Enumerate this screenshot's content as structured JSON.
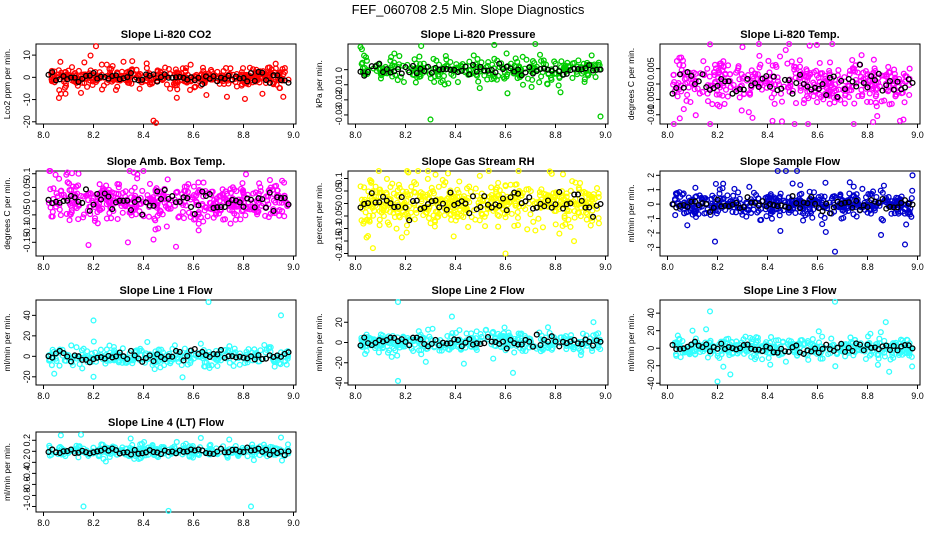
{
  "figure": {
    "title": "FEF_060708  2.5 Min. Slope Diagnostics"
  },
  "chart_data": [
    {
      "id": "co2",
      "type": "scatter",
      "title": "Slope Li-820 CO2",
      "ylabel": "Lco2 ppm per min.",
      "xlim": [
        7.97,
        9.01
      ],
      "xticks": [
        8.0,
        8.2,
        8.4,
        8.6,
        8.8,
        9.0
      ],
      "ylim": [
        -21,
        15
      ],
      "yticks": [
        -20,
        -10,
        0,
        10
      ],
      "color": "#ff0000",
      "spread": 2.6,
      "n": 420,
      "xstart": 8.02,
      "xend": 8.98,
      "outliers": [
        [
          8.21,
          14
        ],
        [
          8.44,
          -19.5
        ],
        [
          8.45,
          -20.5
        ],
        [
          8.15,
          -7
        ],
        [
          8.32,
          7
        ]
      ]
    },
    {
      "id": "press",
      "type": "scatter",
      "title": "Slope Li-820 Pressure",
      "ylabel": "kPa per min.",
      "xlim": [
        7.97,
        9.01
      ],
      "xticks": [
        8.0,
        8.2,
        8.4,
        8.6,
        8.8,
        9.0
      ],
      "ylim": [
        -0.036,
        0.017
      ],
      "yticks": [
        -0.03,
        -0.02,
        -0.01,
        0.0
      ],
      "color": "#00cc00",
      "spread": 0.004,
      "n": 300,
      "xstart": 8.02,
      "xend": 8.98,
      "outliers": [
        [
          8.02,
          0.015
        ],
        [
          8.3,
          -0.033
        ],
        [
          8.98,
          -0.031
        ],
        [
          8.82,
          -0.015
        ],
        [
          8.67,
          -0.01
        ]
      ]
    },
    {
      "id": "temp",
      "type": "scatter",
      "title": "Slope Li-820 Temp.",
      "ylabel": "degrees C per min.",
      "xlim": [
        7.97,
        9.01
      ],
      "xticks": [
        8.0,
        8.2,
        8.4,
        8.6,
        8.8,
        9.0
      ],
      "ylim": [
        -0.013,
        0.013
      ],
      "yticks": [
        -0.01,
        -0.005,
        0.0,
        0.005
      ],
      "color": "#ff00ff",
      "spread": 0.0045,
      "n": 420,
      "xstart": 8.02,
      "xend": 8.98,
      "outliers": [
        [
          8.3,
          0.012
        ],
        [
          8.34,
          -0.011
        ],
        [
          8.42,
          -0.012
        ],
        [
          8.93,
          -0.012
        ]
      ]
    },
    {
      "id": "box",
      "type": "scatter",
      "title": "Slope Amb. Box Temp.",
      "ylabel": "degrees C per min.",
      "xlim": [
        7.97,
        9.01
      ],
      "xticks": [
        8.0,
        8.2,
        8.4,
        8.6,
        8.8,
        9.0
      ],
      "ylim": [
        -0.2,
        0.11
      ],
      "yticks": [
        -0.15,
        -0.1,
        -0.05,
        0.0,
        0.05,
        0.1
      ],
      "color": "#ff00ff",
      "spread": 0.045,
      "n": 460,
      "xstart": 8.02,
      "xend": 8.98,
      "outliers": [
        [
          8.18,
          -0.16
        ],
        [
          8.44,
          -0.14
        ],
        [
          8.14,
          0.1
        ]
      ]
    },
    {
      "id": "rh",
      "type": "scatter",
      "title": "Slope Gas Stream RH",
      "ylabel": "percent per min.",
      "xlim": [
        7.97,
        9.01
      ],
      "xticks": [
        8.0,
        8.2,
        8.4,
        8.6,
        8.8,
        9.0
      ],
      "ylim": [
        -0.21,
        0.13
      ],
      "yticks": [
        -0.2,
        -0.15,
        -0.1,
        -0.05,
        0.0,
        0.05,
        0.1
      ],
      "color": "#ffff00",
      "spread": 0.05,
      "n": 500,
      "xstart": 8.02,
      "xend": 8.98,
      "outliers": [
        [
          8.6,
          -0.2
        ],
        [
          8.37,
          0.12
        ],
        [
          8.05,
          -0.13
        ]
      ]
    },
    {
      "id": "sample",
      "type": "scatter",
      "title": "Slope Sample Flow",
      "ylabel": "ml/min per min.",
      "xlim": [
        7.97,
        9.01
      ],
      "xticks": [
        8.0,
        8.2,
        8.4,
        8.6,
        8.8,
        9.0
      ],
      "ylim": [
        -3.6,
        2.3
      ],
      "yticks": [
        -3,
        -2,
        -1,
        0,
        1,
        2
      ],
      "color": "#0000cc",
      "spread": 0.55,
      "n": 460,
      "xstart": 8.02,
      "xend": 8.98,
      "outliers": [
        [
          8.67,
          -3.3
        ],
        [
          8.19,
          -2.6
        ],
        [
          8.95,
          -2.8
        ],
        [
          8.98,
          2.0
        ]
      ]
    },
    {
      "id": "line1",
      "type": "scatter",
      "title": "Slope Line 1 Flow",
      "ylabel": "ml/min per min.",
      "xlim": [
        7.97,
        9.01
      ],
      "xticks": [
        8.0,
        8.2,
        8.4,
        8.6,
        8.8,
        9.0
      ],
      "ylim": [
        -28,
        55
      ],
      "yticks": [
        -20,
        0,
        20,
        40
      ],
      "color": "#33ffff",
      "spread": 6,
      "n": 300,
      "xstart": 8.02,
      "xend": 8.98,
      "outliers": [
        [
          8.66,
          53
        ],
        [
          8.2,
          35
        ],
        [
          8.95,
          40
        ],
        [
          8.2,
          -20
        ]
      ]
    },
    {
      "id": "line2",
      "type": "scatter",
      "title": "Slope Line 2 Flow",
      "ylabel": "ml/min per min.",
      "xlim": [
        7.97,
        9.01
      ],
      "xticks": [
        8.0,
        8.2,
        8.4,
        8.6,
        8.8,
        9.0
      ],
      "ylim": [
        -42,
        42
      ],
      "yticks": [
        -40,
        -20,
        0,
        20
      ],
      "color": "#33ffff",
      "spread": 6,
      "n": 360,
      "xstart": 8.02,
      "xend": 8.98,
      "outliers": [
        [
          8.17,
          40
        ],
        [
          8.17,
          -38
        ],
        [
          8.63,
          -30
        ],
        [
          8.77,
          15
        ]
      ]
    },
    {
      "id": "line3",
      "type": "scatter",
      "title": "Slope Line 3 Flow",
      "ylabel": "ml/min per min.",
      "xlim": [
        7.97,
        9.01
      ],
      "xticks": [
        8.0,
        8.2,
        8.4,
        8.6,
        8.8,
        9.0
      ],
      "ylim": [
        -42,
        55
      ],
      "yticks": [
        -40,
        -20,
        0,
        20,
        40
      ],
      "color": "#33ffff",
      "spread": 6.5,
      "n": 380,
      "xstart": 8.02,
      "xend": 8.98,
      "outliers": [
        [
          8.67,
          53
        ],
        [
          8.17,
          42
        ],
        [
          8.2,
          -38
        ],
        [
          8.1,
          20
        ]
      ]
    },
    {
      "id": "line4",
      "type": "scatter",
      "title": "Slope Line 4 (LT) Flow",
      "ylabel": "ml/min per min.",
      "xlim": [
        7.97,
        9.01
      ],
      "xticks": [
        8.0,
        8.2,
        8.4,
        8.6,
        8.8,
        9.0
      ],
      "ylim": [
        -1.1,
        0.35
      ],
      "yticks": [
        -1.0,
        -0.8,
        -0.6,
        -0.4,
        -0.2,
        0.0,
        0.2
      ],
      "color": "#33ffff",
      "spread": 0.07,
      "n": 330,
      "xstart": 8.02,
      "xend": 8.98,
      "outliers": [
        [
          8.16,
          -1.0
        ],
        [
          8.5,
          -1.08
        ],
        [
          8.83,
          -1.0
        ],
        [
          8.15,
          0.3
        ],
        [
          8.95,
          0.25
        ]
      ]
    }
  ]
}
